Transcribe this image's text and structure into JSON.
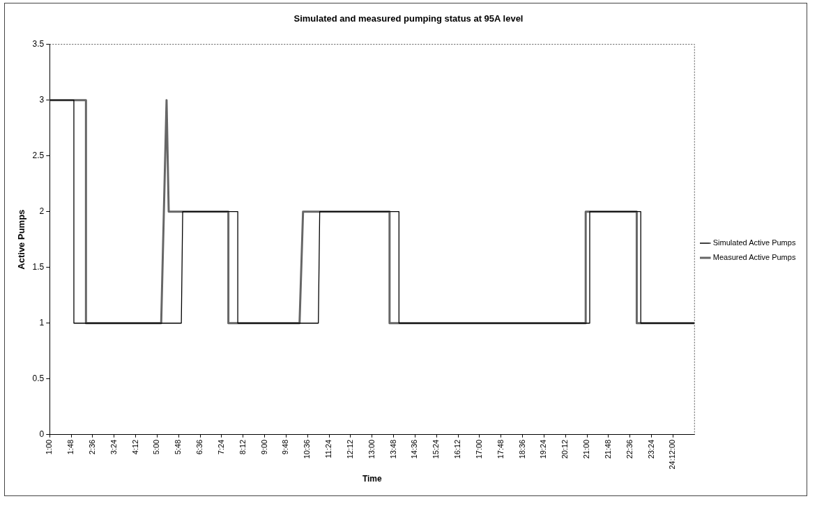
{
  "chart_data": {
    "type": "line",
    "title": "Simulated and measured pumping status at 95A level",
    "xlabel": "Time",
    "ylabel": "Active Pumps",
    "xlim": [
      1,
      25
    ],
    "xticks": [
      {
        "value": 1,
        "label": "1:00"
      },
      {
        "value": 1.8,
        "label": "1:48"
      },
      {
        "value": 2.6,
        "label": "2:36"
      },
      {
        "value": 3.4,
        "label": "3:24"
      },
      {
        "value": 4.2,
        "label": "4:12"
      },
      {
        "value": 5,
        "label": "5:00"
      },
      {
        "value": 5.8,
        "label": "5:48"
      },
      {
        "value": 6.6,
        "label": "6:36"
      },
      {
        "value": 7.4,
        "label": "7:24"
      },
      {
        "value": 8.2,
        "label": "8:12"
      },
      {
        "value": 9,
        "label": "9:00"
      },
      {
        "value": 9.8,
        "label": "9:48"
      },
      {
        "value": 10.6,
        "label": "10:36"
      },
      {
        "value": 11.4,
        "label": "11:24"
      },
      {
        "value": 12.2,
        "label": "12:12"
      },
      {
        "value": 13,
        "label": "13:00"
      },
      {
        "value": 13.8,
        "label": "13:48"
      },
      {
        "value": 14.6,
        "label": "14:36"
      },
      {
        "value": 15.4,
        "label": "15:24"
      },
      {
        "value": 16.2,
        "label": "16:12"
      },
      {
        "value": 17,
        "label": "17:00"
      },
      {
        "value": 17.8,
        "label": "17:48"
      },
      {
        "value": 18.6,
        "label": "18:36"
      },
      {
        "value": 19.4,
        "label": "19:24"
      },
      {
        "value": 20.2,
        "label": "20:12"
      },
      {
        "value": 21,
        "label": "21:00"
      },
      {
        "value": 21.8,
        "label": "21:48"
      },
      {
        "value": 22.6,
        "label": "22:36"
      },
      {
        "value": 23.4,
        "label": "23:24"
      },
      {
        "value": 24.2,
        "label": "24:12:00"
      }
    ],
    "ylim": [
      0,
      3.5
    ],
    "yticks": [
      0,
      0.5,
      1,
      1.5,
      2,
      2.5,
      3,
      3.5
    ],
    "grid": false,
    "legend": "right",
    "marker": "none",
    "line_style": "solid",
    "series": [
      {
        "name": "Simulated Active Pumps",
        "color": "#000000",
        "x": [
          1,
          1.9,
          1.9,
          5.9,
          5.95,
          8.0,
          8.0,
          11.0,
          11.05,
          14.0,
          14.0,
          21.1,
          21.1,
          23.0,
          23.0,
          25
        ],
        "values": [
          3,
          3,
          1,
          1,
          2,
          2,
          1,
          1,
          2,
          2,
          1,
          1,
          2,
          2,
          1,
          1
        ]
      },
      {
        "name": "Measured Active Pumps",
        "color": "#666666",
        "x": [
          1,
          2.35,
          2.35,
          5.15,
          5.35,
          5.43,
          7.65,
          7.65,
          10.3,
          10.43,
          13.65,
          13.65,
          20.95,
          20.95,
          22.85,
          22.85,
          25
        ],
        "values": [
          3,
          3,
          1,
          1,
          3,
          2,
          2,
          1,
          1,
          2,
          2,
          1,
          1,
          2,
          2,
          1,
          1
        ]
      }
    ]
  }
}
